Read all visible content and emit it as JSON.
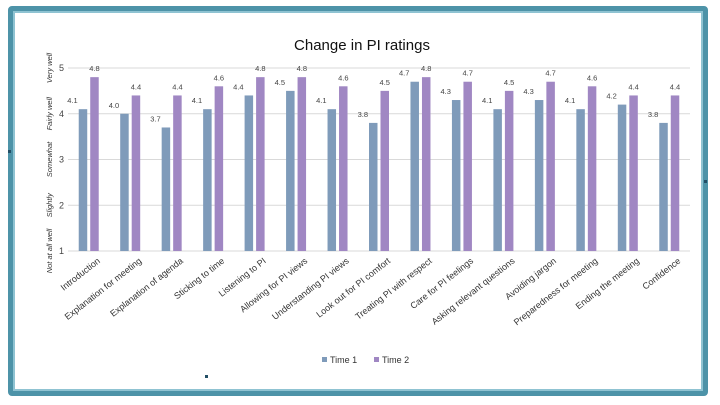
{
  "colors": {
    "time1": "#7f9bba",
    "time2": "#a087c3",
    "grid": "#d9d9d9",
    "frame": "#4d93a8"
  },
  "chart_data": {
    "type": "bar",
    "title": "Change in PI ratings",
    "ylim": [
      1,
      5
    ],
    "yticks": [
      1,
      2,
      3,
      4,
      5
    ],
    "grid": true,
    "legend_position": "bottom",
    "ylabels": [
      "Not at all well",
      "Slightly",
      "Somewhat",
      "Fairly well",
      "Very well"
    ],
    "categories": [
      "Introduction",
      "Explanation for meeting",
      "Explanation of agenda",
      "Sticking to time",
      "Listening to PI",
      "Allowing for PI views",
      "Understanding PI views",
      "Look out for PI comfort",
      "Treating PI with respect",
      "Care for PI feelings",
      "Asking relevant questions",
      "Avoiding jargon",
      "Preparedness for meeting",
      "Ending the meeting",
      "Confidence"
    ],
    "series": [
      {
        "name": "Time 1",
        "values": [
          4.1,
          4.0,
          3.7,
          4.1,
          4.4,
          4.5,
          4.1,
          3.8,
          4.7,
          4.3,
          4.1,
          4.3,
          4.1,
          4.2,
          3.8
        ]
      },
      {
        "name": "Time 2",
        "values": [
          4.8,
          4.4,
          4.4,
          4.6,
          4.8,
          4.8,
          4.6,
          4.5,
          4.8,
          4.7,
          4.5,
          4.7,
          4.6,
          4.4,
          4.4
        ]
      }
    ]
  }
}
